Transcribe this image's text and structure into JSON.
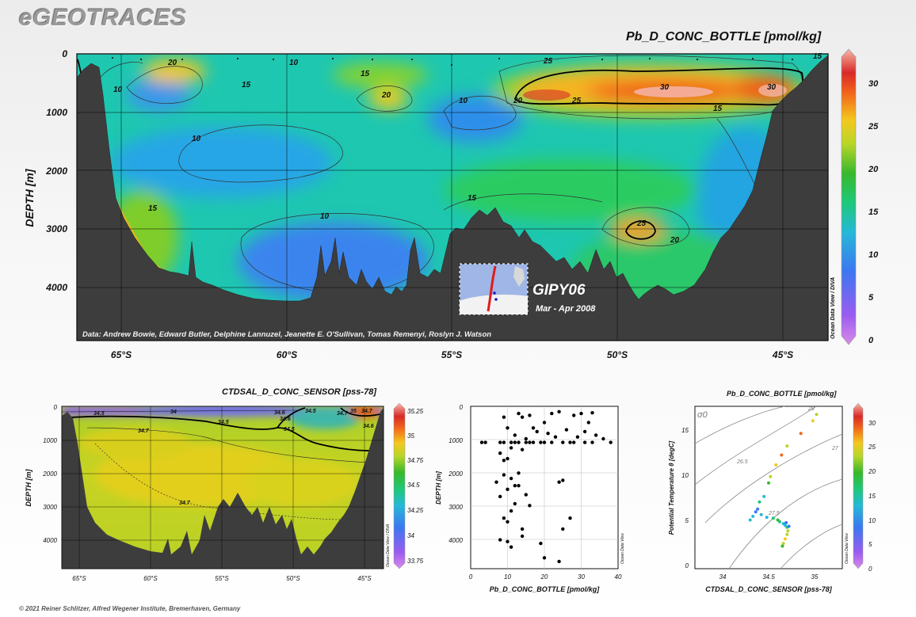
{
  "brand": {
    "logo": "eGEOTRACES"
  },
  "footer": {
    "copyright": "© 2021 Reiner Schlitzer, Alfred Wegener Institute, Bremerhaven, Germany"
  },
  "chart_data": [
    {
      "id": "main-section",
      "type": "heatmap",
      "title": "Pb_D_CONC_BOTTLE [pmol/kg]",
      "ylabel": "DEPTH [m]",
      "x_ticks": [
        "65°S",
        "60°S",
        "55°S",
        "50°S",
        "45°S"
      ],
      "y_ticks": [
        "0",
        "1000",
        "2000",
        "3000",
        "4000"
      ],
      "ylim": [
        4900,
        0
      ],
      "colorbar": {
        "ticks": [
          "0",
          "5",
          "10",
          "15",
          "20",
          "25",
          "30"
        ],
        "range": [
          0,
          33
        ]
      },
      "contour_labels": [
        "20",
        "10",
        "15",
        "10",
        "15",
        "20",
        "10",
        "25",
        "30",
        "30",
        "25",
        "20",
        "15",
        "10",
        "15",
        "15",
        "10",
        "25",
        "20",
        "15"
      ],
      "credit": "Data: Andrew Bowie, Edward Butler, Delphine Lannuzel, Jeanette E. O'Sullivan, Tomas Remenyi, Roslyn J. Watson",
      "side_label": "Ocean Data View / DIVA",
      "inset": {
        "cruise": "GIPY06",
        "dates": "Mar - Apr 2008"
      }
    },
    {
      "id": "salinity-section",
      "type": "heatmap",
      "title": "CTDSAL_D_CONC_SENSOR [pss-78]",
      "ylabel": "DEPTH [m]",
      "x_ticks": [
        "65°S",
        "60°S",
        "55°S",
        "50°S",
        "45°S"
      ],
      "y_ticks": [
        "0",
        "1000",
        "2000",
        "3000",
        "4000"
      ],
      "colorbar": {
        "ticks": [
          "35.25",
          "35",
          "34.75",
          "34.5",
          "34.25",
          "34",
          "33.75"
        ],
        "range": [
          33.7,
          35.3
        ]
      },
      "contour_labels": [
        "34.5",
        "34",
        "34.7",
        "34.5",
        "34.7",
        "34.6",
        "34.5",
        "34.7",
        "34.6",
        "34.6",
        "34.5",
        "35",
        "34.7"
      ],
      "side_label": "Ocean Data View / DIVA"
    },
    {
      "id": "profile-scatter",
      "type": "scatter",
      "title": "",
      "xlabel": "Pb_D_CONC_BOTTLE [pmol/kg]",
      "ylabel": "DEPTH [m]",
      "xlim": [
        0,
        40
      ],
      "ylim": [
        4500,
        0
      ],
      "x_ticks": [
        "0",
        "10",
        "20",
        "30",
        "40"
      ],
      "y_ticks": [
        "0",
        "1000",
        "2000",
        "3000",
        "4000"
      ],
      "side_label": "Ocean Data View",
      "points": [
        [
          8,
          1000
        ],
        [
          9,
          1000
        ],
        [
          11,
          1000
        ],
        [
          12,
          1000
        ],
        [
          13,
          1000
        ],
        [
          15,
          1000
        ],
        [
          16,
          1000
        ],
        [
          17,
          1000
        ],
        [
          19,
          1000
        ],
        [
          20,
          1000
        ],
        [
          22,
          1000
        ],
        [
          25,
          1000
        ],
        [
          27,
          1000
        ],
        [
          28,
          1000
        ],
        [
          31,
          1000
        ],
        [
          33,
          1000
        ],
        [
          38,
          1000
        ],
        [
          3,
          1000
        ],
        [
          4,
          1000
        ],
        [
          9,
          300
        ],
        [
          13,
          200
        ],
        [
          14,
          300
        ],
        [
          16,
          250
        ],
        [
          20,
          450
        ],
        [
          22,
          200
        ],
        [
          24,
          150
        ],
        [
          28,
          250
        ],
        [
          30,
          200
        ],
        [
          33,
          180
        ],
        [
          10,
          600
        ],
        [
          12,
          800
        ],
        [
          17,
          600
        ],
        [
          26,
          650
        ],
        [
          31,
          700
        ],
        [
          32,
          450
        ],
        [
          29,
          850
        ],
        [
          34,
          800
        ],
        [
          36,
          900
        ],
        [
          18,
          700
        ],
        [
          21,
          750
        ],
        [
          15,
          900
        ],
        [
          23,
          850
        ],
        [
          11,
          1150
        ],
        [
          14,
          1200
        ],
        [
          8,
          1300
        ],
        [
          9,
          1500
        ],
        [
          10,
          1450
        ],
        [
          9,
          1900
        ],
        [
          13,
          1850
        ],
        [
          11,
          2000
        ],
        [
          7,
          2100
        ],
        [
          12,
          2200
        ],
        [
          13,
          2200
        ],
        [
          10,
          2300
        ],
        [
          15,
          2450
        ],
        [
          24,
          2100
        ],
        [
          25,
          2050
        ],
        [
          8,
          2500
        ],
        [
          12,
          2700
        ],
        [
          16,
          2750
        ],
        [
          11,
          2900
        ],
        [
          10,
          3200
        ],
        [
          9,
          3100
        ],
        [
          14,
          3400
        ],
        [
          27,
          3100
        ],
        [
          14,
          3600
        ],
        [
          25,
          3400
        ],
        [
          19,
          3800
        ],
        [
          11,
          3900
        ],
        [
          8,
          3700
        ],
        [
          20,
          4200
        ],
        [
          24,
          4300
        ],
        [
          10,
          3750
        ]
      ]
    },
    {
      "id": "ts-scatter",
      "type": "scatter",
      "title": "Pb_D_CONC_BOTTLE [pmol/kg]",
      "xlabel": "CTDSAL_D_CONC_SENSOR [pss-78]",
      "ylabel": "Potential Temperature θ [degC]",
      "xlim": [
        33.7,
        35.3
      ],
      "ylim": [
        -3,
        15
      ],
      "x_ticks": [
        "34",
        "34.5",
        "35"
      ],
      "y_ticks": [
        "0",
        "5",
        "10",
        "15"
      ],
      "sigma_label": "σ0",
      "isopycnal_labels": [
        "26.5",
        "27",
        "28",
        "27.5"
      ],
      "colorbar": {
        "ticks": [
          "0",
          "5",
          "10",
          "15",
          "20",
          "25",
          "30"
        ],
        "range": [
          0,
          33
        ]
      },
      "side_label": "Ocean Data View",
      "points": [
        [
          34.62,
          2.2,
          14
        ],
        [
          34.66,
          2.0,
          12
        ],
        [
          34.68,
          1.8,
          10
        ],
        [
          34.7,
          1.6,
          15
        ],
        [
          34.71,
          1.2,
          20
        ],
        [
          34.7,
          0.8,
          22
        ],
        [
          34.68,
          0.3,
          25
        ],
        [
          34.66,
          -0.2,
          22
        ],
        [
          34.65,
          -0.5,
          18
        ],
        [
          34.72,
          1.7,
          8
        ],
        [
          34.69,
          2.1,
          6
        ],
        [
          34.6,
          2.4,
          16
        ],
        [
          34.55,
          2.6,
          14
        ],
        [
          34.48,
          2.7,
          12
        ],
        [
          34.42,
          3.0,
          10
        ],
        [
          34.38,
          3.6,
          8
        ],
        [
          34.4,
          4.4,
          14
        ],
        [
          34.45,
          5.0,
          12
        ],
        [
          34.5,
          6.5,
          16
        ],
        [
          34.52,
          7.2,
          22
        ],
        [
          34.58,
          8.5,
          24
        ],
        [
          34.64,
          9.6,
          28
        ],
        [
          34.7,
          10.6,
          20
        ],
        [
          34.85,
          12.0,
          26
        ],
        [
          34.98,
          13.4,
          24
        ],
        [
          35.02,
          14.1,
          22
        ],
        [
          34.36,
          3.3,
          6
        ],
        [
          34.33,
          2.8,
          9
        ],
        [
          34.3,
          2.4,
          11
        ]
      ]
    }
  ]
}
